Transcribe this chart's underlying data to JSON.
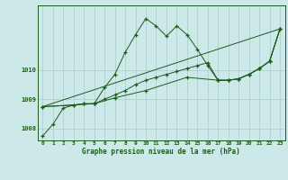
{
  "xlabel": "Graphe pression niveau de la mer (hPa)",
  "xlim": [
    -0.5,
    23.5
  ],
  "ylim": [
    1007.6,
    1012.2
  ],
  "yticks": [
    1008,
    1009,
    1010
  ],
  "xticks": [
    0,
    1,
    2,
    3,
    4,
    5,
    6,
    7,
    8,
    9,
    10,
    11,
    12,
    13,
    14,
    15,
    16,
    17,
    18,
    19,
    20,
    21,
    22,
    23
  ],
  "background_color": "#cce8e8",
  "grid_color": "#aacccc",
  "line_color": "#1a5c1a",
  "line1_jagged": {
    "x": [
      0,
      1,
      2,
      3,
      4,
      5,
      6,
      7,
      8,
      9,
      10,
      11,
      12,
      13,
      14,
      15,
      16,
      17,
      18,
      19,
      20,
      21,
      22,
      23
    ],
    "y": [
      1007.75,
      1008.15,
      1008.7,
      1008.8,
      1008.85,
      1008.85,
      1009.4,
      1009.85,
      1010.6,
      1011.2,
      1011.75,
      1011.5,
      1011.15,
      1011.5,
      1011.2,
      1010.7,
      1010.15,
      1009.65,
      1009.65,
      1009.7,
      1009.85,
      1010.05,
      1010.3,
      1011.4
    ]
  },
  "line2_straight": {
    "x": [
      0,
      23
    ],
    "y": [
      1008.75,
      1011.4
    ]
  },
  "line3_gradual": {
    "x": [
      0,
      5,
      7,
      10,
      14,
      17,
      18,
      19,
      20,
      21,
      22,
      23
    ],
    "y": [
      1008.75,
      1008.85,
      1009.05,
      1009.3,
      1009.75,
      1009.65,
      1009.65,
      1009.7,
      1009.85,
      1010.05,
      1010.3,
      1011.4
    ]
  },
  "line4_smooth": {
    "x": [
      0,
      3,
      4,
      5,
      6,
      7,
      8,
      9,
      10,
      11,
      12,
      13,
      14,
      15,
      16,
      17,
      18,
      19,
      20,
      21,
      22,
      23
    ],
    "y": [
      1008.75,
      1008.8,
      1008.85,
      1008.85,
      1009.0,
      1009.15,
      1009.3,
      1009.5,
      1009.65,
      1009.75,
      1009.85,
      1009.95,
      1010.05,
      1010.15,
      1010.25,
      1009.65,
      1009.65,
      1009.7,
      1009.85,
      1010.05,
      1010.3,
      1011.4
    ]
  }
}
